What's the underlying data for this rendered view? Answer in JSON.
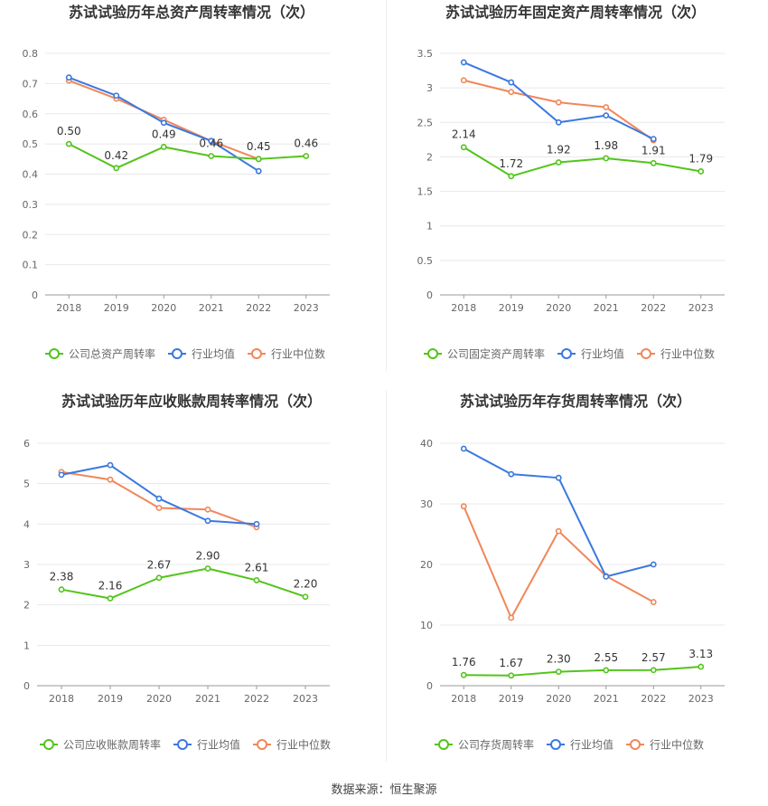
{
  "source_label": "数据来源：恒生聚源",
  "colors": {
    "company": "#52c41a",
    "industry_avg": "#3a78e0",
    "industry_median": "#f0875a",
    "grid": "#e8e8e8",
    "axis": "#999999",
    "text": "#666666",
    "title": "#333333"
  },
  "chart_data": [
    {
      "type": "line",
      "title": "苏试试验历年总资产周转率情况（次）",
      "categories": [
        "2018",
        "2019",
        "2020",
        "2021",
        "2022",
        "2023"
      ],
      "ylim": [
        0,
        0.8
      ],
      "yticks": [
        "0",
        "0.1",
        "0.2",
        "0.3",
        "0.4",
        "0.5",
        "0.6",
        "0.7",
        "0.8"
      ],
      "series": [
        {
          "name": "公司总资产周转率",
          "key": "company",
          "values": [
            0.5,
            0.42,
            0.49,
            0.46,
            0.45,
            0.46
          ],
          "labels": [
            "0.50",
            "0.42",
            "0.49",
            "0.46",
            "0.45",
            "0.46"
          ]
        },
        {
          "name": "行业均值",
          "key": "industry_avg",
          "values": [
            0.72,
            0.66,
            0.57,
            0.51,
            0.41,
            null
          ]
        },
        {
          "name": "行业中位数",
          "key": "industry_median",
          "values": [
            0.71,
            0.65,
            0.58,
            0.51,
            0.45,
            null
          ]
        }
      ]
    },
    {
      "type": "line",
      "title": "苏试试验历年固定资产周转率情况（次）",
      "categories": [
        "2018",
        "2019",
        "2020",
        "2021",
        "2022",
        "2023"
      ],
      "ylim": [
        0,
        3.5
      ],
      "yticks": [
        "0",
        "0.5",
        "1",
        "1.5",
        "2",
        "2.5",
        "3",
        "3.5"
      ],
      "series": [
        {
          "name": "公司固定资产周转率",
          "key": "company",
          "values": [
            2.14,
            1.72,
            1.92,
            1.98,
            1.91,
            1.79
          ],
          "labels": [
            "2.14",
            "1.72",
            "1.92",
            "1.98",
            "1.91",
            "1.79"
          ]
        },
        {
          "name": "行业均值",
          "key": "industry_avg",
          "values": [
            3.37,
            3.08,
            2.5,
            2.6,
            2.26,
            null
          ]
        },
        {
          "name": "行业中位数",
          "key": "industry_median",
          "values": [
            3.11,
            2.94,
            2.79,
            2.72,
            2.24,
            null
          ]
        }
      ]
    },
    {
      "type": "line",
      "title": "苏试试验历年应收账款周转率情况（次）",
      "categories": [
        "2018",
        "2019",
        "2020",
        "2021",
        "2022",
        "2023"
      ],
      "ylim": [
        0,
        6
      ],
      "yticks": [
        "0",
        "1",
        "2",
        "3",
        "4",
        "5",
        "6"
      ],
      "series": [
        {
          "name": "公司应收账款周转率",
          "key": "company",
          "values": [
            2.38,
            2.16,
            2.67,
            2.9,
            2.61,
            2.2
          ],
          "labels": [
            "2.38",
            "2.16",
            "2.67",
            "2.90",
            "2.61",
            "2.20"
          ]
        },
        {
          "name": "行业均值",
          "key": "industry_avg",
          "values": [
            5.22,
            5.46,
            4.63,
            4.08,
            4.0,
            null
          ]
        },
        {
          "name": "行业中位数",
          "key": "industry_median",
          "values": [
            5.29,
            5.1,
            4.4,
            4.36,
            3.92,
            null
          ]
        }
      ]
    },
    {
      "type": "line",
      "title": "苏试试验历年存货周转率情况（次）",
      "categories": [
        "2018",
        "2019",
        "2020",
        "2021",
        "2022",
        "2023"
      ],
      "ylim": [
        0,
        40
      ],
      "yticks": [
        "0",
        "10",
        "20",
        "30",
        "40"
      ],
      "series": [
        {
          "name": "公司存货周转率",
          "key": "company",
          "values": [
            1.76,
            1.67,
            2.3,
            2.55,
            2.57,
            3.13
          ],
          "labels": [
            "1.76",
            "1.67",
            "2.30",
            "2.55",
            "2.57",
            "3.13"
          ]
        },
        {
          "name": "行业均值",
          "key": "industry_avg",
          "values": [
            39.1,
            34.9,
            34.3,
            18.0,
            20.0,
            null
          ]
        },
        {
          "name": "行业中位数",
          "key": "industry_median",
          "values": [
            29.6,
            11.2,
            25.5,
            18.1,
            13.8,
            null
          ]
        }
      ]
    }
  ]
}
